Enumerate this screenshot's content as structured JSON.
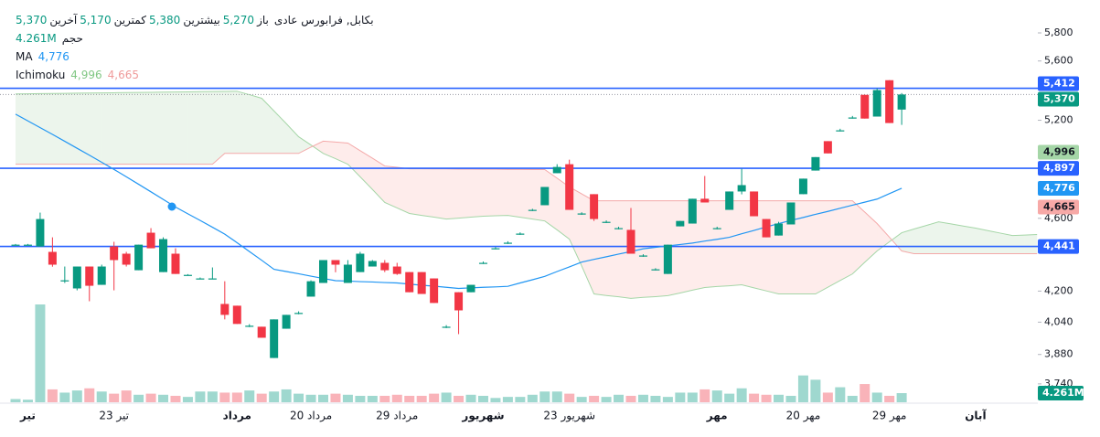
{
  "chart_data": {
    "type": "candlestick",
    "legend": {
      "name": "بکابل, فرابورس عادی",
      "fields": [
        {
          "label": "باز",
          "value": "5,270"
        },
        {
          "label": "بیشترین",
          "value": "5,380"
        },
        {
          "label": "کمترین",
          "value": "5,170"
        },
        {
          "label": "آخرین",
          "value": "5,370"
        }
      ],
      "volume_label": "حجم",
      "ma_label": "MA",
      "ichimoku_label": "Ichimoku"
    },
    "categories": [
      null,
      "تیر",
      null,
      null,
      null,
      null,
      null,
      null,
      "23 تیر",
      null,
      null,
      null,
      null,
      null,
      null,
      null,
      null,
      null,
      "مرداد",
      null,
      null,
      null,
      null,
      null,
      "20 مرداد",
      null,
      null,
      null,
      null,
      null,
      null,
      "29 مرداد",
      null,
      null,
      null,
      null,
      null,
      null,
      "شهریور",
      null,
      null,
      null,
      null,
      null,
      null,
      "23 شهریور",
      null,
      null,
      null,
      null,
      null,
      null,
      null,
      null,
      null,
      null,
      null,
      "مهر",
      null,
      null,
      null,
      null,
      null,
      null,
      "20 مهر",
      null,
      null,
      null,
      null,
      null,
      null,
      "29 مهر",
      null,
      null,
      null,
      null,
      null,
      null,
      "آبان",
      null,
      null,
      null,
      null,
      null
    ],
    "open": [
      4451,
      4451,
      4441,
      4411,
      4257,
      4214,
      4331,
      4233,
      4441,
      4401,
      4311,
      4518,
      4301,
      4401,
      4286,
      4267,
      4267,
      4133,
      4124,
      4022,
      4017,
      3863,
      4007,
      4087,
      4171,
      4243,
      4366,
      4243,
      4301,
      4331,
      4351,
      4331,
      4301,
      4301,
      4267,
      4017,
      4194,
      4194,
      4351,
      4431,
      4462,
      4513,
      4649,
      4676,
      4867,
      4922,
      4628,
      4741,
      4580,
      4544,
      4534,
      4391,
      4316,
      4291,
      4554,
      4570,
      4714,
      4544,
      4649,
      4757,
      4757,
      4596,
      4502,
      4565,
      4741,
      4883,
      5066,
      5135,
      5218,
      5368,
      5224,
      5467,
      5270,
      null,
      null,
      null,
      null,
      null,
      null,
      null,
      null,
      null,
      null,
      null
    ],
    "high": [
      4455,
      4455,
      4633,
      4492,
      4331,
      4331,
      4331,
      4341,
      4467,
      4411,
      4451,
      4544,
      4492,
      4431,
      4290,
      4272,
      4326,
      4252,
      4124,
      4030,
      4017,
      4054,
      4077,
      4095,
      4257,
      4366,
      4366,
      4366,
      4411,
      4366,
      4366,
      4351,
      4301,
      4301,
      4267,
      4025,
      4194,
      4233,
      4358,
      4438,
      4470,
      4520,
      4655,
      4784,
      4922,
      4950,
      4635,
      4741,
      4588,
      4552,
      4660,
      4398,
      4322,
      4451,
      4585,
      4714,
      4850,
      4552,
      4757,
      4894,
      4757,
      4596,
      4580,
      4692,
      4834,
      4966,
      5066,
      5145,
      5228,
      5368,
      5411,
      5467,
      5380,
      null,
      null,
      null,
      null,
      null,
      null,
      null,
      null,
      null,
      null,
      null
    ],
    "low": [
      4448,
      4448,
      4441,
      4330,
      4243,
      4204,
      4147,
      4233,
      4204,
      4331,
      4311,
      4431,
      4301,
      4291,
      4282,
      4262,
      4262,
      4054,
      4031,
      4015,
      3962,
      3863,
      4007,
      4080,
      4171,
      4243,
      4300,
      4243,
      4301,
      4331,
      4301,
      4286,
      4194,
      4185,
      4138,
      4010,
      3980,
      4194,
      4345,
      4425,
      4455,
      4506,
      4642,
      4676,
      4867,
      4649,
      4620,
      4585,
      4573,
      4537,
      4401,
      4384,
      4310,
      4291,
      4554,
      4570,
      4692,
      4537,
      4649,
      4740,
      4612,
      4492,
      4502,
      4565,
      4741,
      4883,
      4989,
      5128,
      5211,
      5211,
      5224,
      5182,
      5170,
      null,
      null,
      null,
      null,
      null,
      null,
      null,
      null,
      null,
      null,
      null
    ],
    "close": [
      4451,
      4451,
      4596,
      4341,
      4257,
      4331,
      4228,
      4331,
      4366,
      4341,
      4451,
      4431,
      4482,
      4291,
      4286,
      4267,
      4267,
      4077,
      4031,
      4022,
      3962,
      4054,
      4077,
      4087,
      4252,
      4366,
      4341,
      4341,
      4401,
      4361,
      4311,
      4291,
      4194,
      4185,
      4138,
      4017,
      4100,
      4233,
      4351,
      4431,
      4462,
      4513,
      4649,
      4784,
      4905,
      4649,
      4628,
      4596,
      4580,
      4544,
      4401,
      4391,
      4316,
      4451,
      4585,
      4714,
      4692,
      4544,
      4757,
      4795,
      4612,
      4492,
      4570,
      4692,
      4834,
      4966,
      4989,
      5135,
      5218,
      5211,
      5400,
      5182,
      5370,
      null,
      null,
      null,
      null,
      null,
      null,
      null,
      null,
      null,
      null,
      null
    ],
    "up_color": "#089981",
    "down_color": "#f23645",
    "volume": {
      "values": [
        1.5,
        1.2,
        45.6,
        6.0,
        4.5,
        5.5,
        6.5,
        5.0,
        4.0,
        5.5,
        3.5,
        4.0,
        3.5,
        3.0,
        2.5,
        5.0,
        5.0,
        4.5,
        4.5,
        5.5,
        4.0,
        5.0,
        6.0,
        4.0,
        3.5,
        3.5,
        4.0,
        3.5,
        3.0,
        3.0,
        3.0,
        3.5,
        3.0,
        3.0,
        4.0,
        4.5,
        3.0,
        3.5,
        3.0,
        2.0,
        2.5,
        2.5,
        3.5,
        5.0,
        5.0,
        4.0,
        2.5,
        3.0,
        2.5,
        3.5,
        3.0,
        3.5,
        3.0,
        2.5,
        4.5,
        4.5,
        6.0,
        5.5,
        4.0,
        6.5,
        4.0,
        3.5,
        3.5,
        3.0,
        12.5,
        10.5,
        4.5,
        7.0,
        3.0,
        8.5,
        4.5,
        3.0,
        4.261,
        null,
        null,
        null,
        null,
        null,
        null,
        null,
        null,
        null,
        null,
        null
      ],
      "label": "4.261M",
      "up_color": "#9fd8cf",
      "down_color": "#f9b3b9"
    },
    "ma": {
      "color": "#2196f3",
      "values": [
        5240,
        5196,
        5152,
        5109,
        5065,
        5021,
        4978,
        4934,
        4890,
        4845,
        4800,
        4755,
        4710,
        4665,
        4626,
        4588,
        4549,
        4510,
        4462,
        4413,
        4365,
        4316,
        4304,
        4292,
        4279,
        4267,
        4255,
        4253,
        4250,
        4248,
        4245,
        4243,
        4237,
        4231,
        4226,
        4220,
        4214,
        4217,
        4220,
        4222,
        4225,
        4243,
        4260,
        4278,
        4304,
        4329,
        4355,
        4370,
        4384,
        4399,
        4413,
        4428,
        4436,
        4444,
        4452,
        4460,
        4471,
        4481,
        4492,
        4512,
        4531,
        4551,
        4570,
        4588,
        4605,
        4623,
        4640,
        4658,
        4676,
        4694,
        4712,
        4744,
        4776,
        null,
        null,
        null,
        null,
        null,
        null,
        null,
        null,
        null,
        null,
        null
      ]
    },
    "ichimoku": {
      "span_a_color": "#a5d6a7",
      "span_b_color": "#f4a9a9",
      "up_fill": "rgba(67,160,71,0.1)",
      "down_fill": "rgba(244,67,54,0.1)",
      "span_a": [
        5374,
        5375,
        5376,
        5377,
        5378,
        5379,
        5380,
        5381,
        5382,
        5383,
        5384,
        5385,
        5386,
        5387,
        5388,
        5389,
        5390,
        5391,
        5392,
        5369,
        5345,
        5261,
        5178,
        5094,
        5042,
        4989,
        4956,
        4922,
        4845,
        4769,
        4692,
        4660,
        4628,
        4617,
        4607,
        4596,
        4601,
        4607,
        4612,
        4615,
        4617,
        4606,
        4596,
        4585,
        4534,
        4482,
        4334,
        4185,
        4177,
        4170,
        4162,
        4167,
        4171,
        4176,
        4190,
        4205,
        4219,
        4224,
        4228,
        4233,
        4217,
        4201,
        4185,
        4185,
        4185,
        4185,
        4220,
        4256,
        4291,
        4354,
        4416,
        4467,
        4518,
        4539,
        4559,
        4580,
        4568,
        4556,
        4544,
        4530,
        4516,
        4502,
        4505,
        4508
      ],
      "span_b": [
        4922,
        4922,
        4922,
        4922,
        4922,
        4922,
        4922,
        4922,
        4922,
        4922,
        4922,
        4922,
        4922,
        4922,
        4922,
        4922,
        4922,
        4989,
        4989,
        4989,
        4989,
        4989,
        4989,
        4989,
        5028,
        5066,
        5060,
        5054,
        5006,
        4959,
        4911,
        4903,
        4894,
        4894,
        4893,
        4893,
        4892,
        4892,
        4891,
        4891,
        4890,
        4890,
        4889,
        4889,
        4837,
        4784,
        4743,
        4702,
        4702,
        4702,
        4702,
        4702,
        4702,
        4702,
        4702,
        4702,
        4702,
        4702,
        4702,
        4702,
        4702,
        4702,
        4702,
        4702,
        4702,
        4702,
        4702,
        4702,
        4702,
        4636,
        4570,
        4493,
        4416,
        4401,
        4401,
        4401,
        4401,
        4401,
        4401,
        4401,
        4401,
        4401,
        4401,
        4401
      ]
    },
    "price_labels": [
      {
        "value": 5412,
        "label": "5,412",
        "color": "#2962ff",
        "text_color": "#ffffff",
        "line": "solid"
      },
      {
        "value": 5370,
        "label": "5,370",
        "color": "#089981",
        "text_color": "#ffffff",
        "line": "dotted"
      },
      {
        "value": 4996,
        "label": "4,996",
        "color": "#a5d6a7",
        "text_color": "#131722"
      },
      {
        "value": 4897,
        "label": "4,897",
        "color": "#2962ff",
        "text_color": "#ffffff",
        "line": "solid"
      },
      {
        "value": 4776,
        "label": "4,776",
        "color": "#2196f3",
        "text_color": "#ffffff"
      },
      {
        "value": 4665,
        "label": "4,665",
        "color": "#f7a9a7",
        "text_color": "#131722"
      },
      {
        "value": 4441,
        "label": "4,441",
        "color": "#2962ff",
        "text_color": "#ffffff",
        "line": "solid"
      }
    ],
    "log_scale": true,
    "ylim": [
      3655,
      5975
    ],
    "yticks": [
      {
        "value": 5800,
        "label": "5,800"
      },
      {
        "value": 5600,
        "label": "5,600"
      },
      {
        "value": 5200,
        "label": "5,200"
      },
      {
        "value": 4600,
        "label": "4,600"
      },
      {
        "value": 4200,
        "label": "4,200"
      },
      {
        "value": 4040,
        "label": "4,040"
      },
      {
        "value": 3880,
        "label": "3,880"
      },
      {
        "value": 3740,
        "label": "3,740"
      }
    ]
  }
}
